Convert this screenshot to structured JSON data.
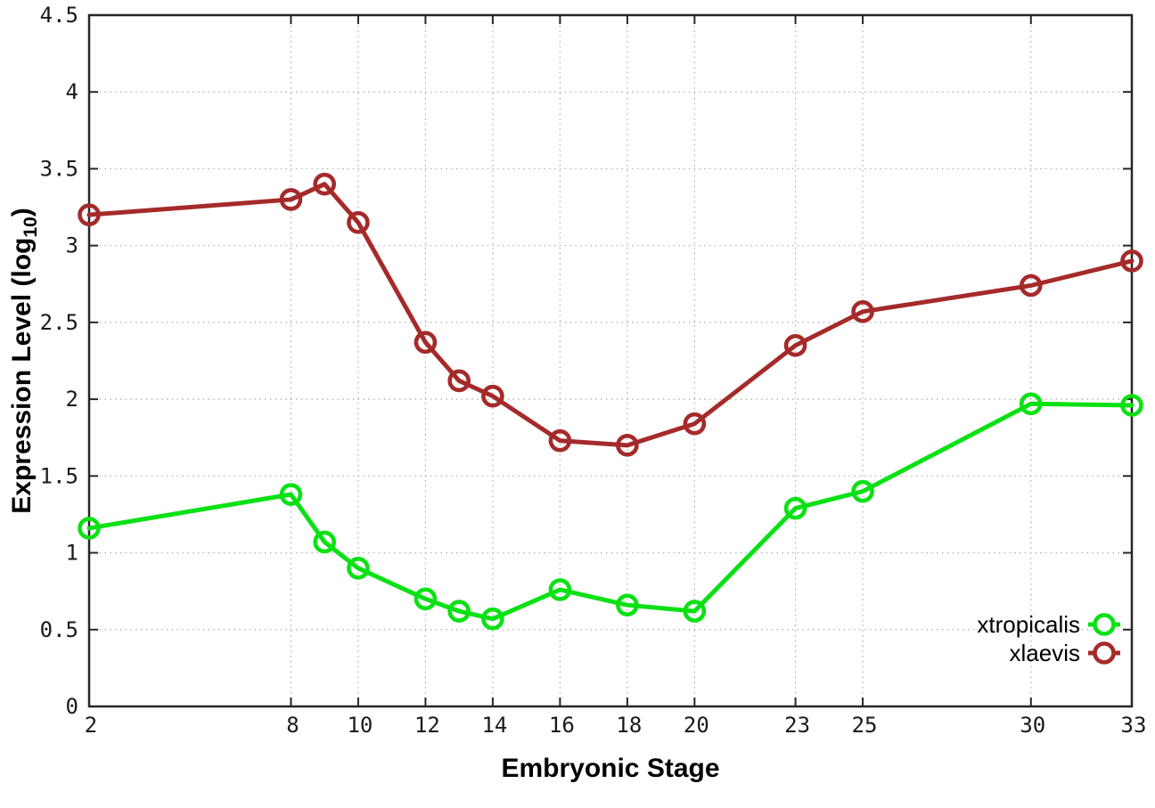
{
  "chart_data": {
    "type": "line",
    "x": [
      2,
      8,
      9,
      10,
      12,
      13,
      14,
      16,
      18,
      20,
      23,
      25,
      30,
      33
    ],
    "series": [
      {
        "name": "xtropicalis",
        "color": "#0ae114",
        "values": [
          1.16,
          1.38,
          1.07,
          0.9,
          0.7,
          0.62,
          0.57,
          0.76,
          0.66,
          0.62,
          1.29,
          1.4,
          1.97,
          1.96
        ]
      },
      {
        "name": "xlaevis",
        "color": "#a52a2a",
        "values": [
          3.2,
          3.3,
          3.4,
          3.15,
          2.37,
          2.12,
          2.02,
          1.73,
          1.7,
          1.84,
          2.35,
          2.57,
          2.74,
          2.9
        ]
      }
    ],
    "xlabel": "Embryonic Stage",
    "ylabel_main": "Expression Level (log",
    "ylabel_sub": "10",
    "ylabel_close": ")",
    "xlim": [
      2,
      33
    ],
    "ylim": [
      0,
      4.5
    ],
    "x_ticks": [
      2,
      8,
      10,
      12,
      14,
      16,
      18,
      20,
      23,
      25,
      30,
      33
    ],
    "x_tick_labels": [
      "2",
      "8",
      "10",
      "12",
      "14",
      "16",
      "18",
      "20",
      "23",
      "25",
      "30",
      "33"
    ],
    "y_ticks": [
      0,
      0.5,
      1,
      1.5,
      2,
      2.5,
      3,
      3.5,
      4,
      4.5
    ],
    "y_tick_labels": [
      "0",
      "0.5",
      "1",
      "1.5",
      "2",
      "2.5",
      "3",
      "3.5",
      "4",
      "4.5"
    ],
    "grid": true,
    "legend_position": "bottom-right",
    "marker": "open-circle",
    "colors": {
      "background": "#ffffff",
      "grid": "#b0b0b0",
      "axis": "#262626",
      "text": "#000000"
    }
  }
}
